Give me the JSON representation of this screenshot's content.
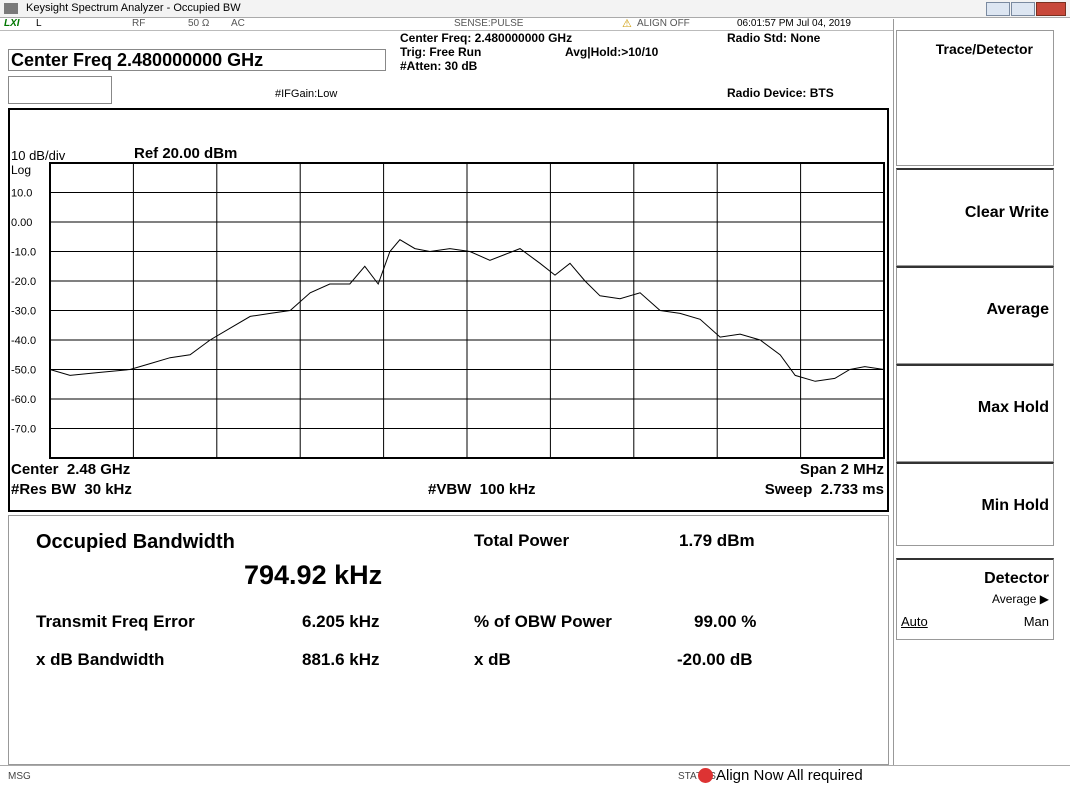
{
  "window": {
    "title": "Keysight Spectrum Analyzer - Occupied BW"
  },
  "status_strip": {
    "lxi": "LXI",
    "l": "L",
    "rf": "RF",
    "impedance": "50 Ω",
    "coupling": "AC",
    "sense": "SENSE:PULSE",
    "align": "ALIGN OFF",
    "time": "06:01:57 PM Jul 04, 2019"
  },
  "header": {
    "center_freq": "Center Freq 2.480000000 GHz",
    "ifgain": "#IFGain:Low",
    "center_freq_info": "Center Freq: 2.480000000 GHz",
    "trig": "Trig: Free Run",
    "avg_hold": "Avg|Hold:>10/10",
    "atten": "#Atten: 30 dB",
    "radio_std": "Radio Std: None",
    "radio_device": "Radio Device: BTS"
  },
  "trace": {
    "type": "line",
    "scale": "10 dB/div",
    "ref": "Ref 20.00 dBm",
    "log": "Log",
    "center": "Center  2.48 GHz",
    "res_bw": "#Res BW  30 kHz",
    "vbw": "#VBW  100 kHz",
    "span": "Span 2 MHz",
    "sweep": "Sweep  2.733 ms",
    "color": "#000000",
    "xlim": [
      2.479,
      2.481
    ],
    "ylim": [
      -80,
      20
    ],
    "xticks": [
      2.479,
      2.4792,
      2.4794,
      2.4796,
      2.4798,
      2.48,
      2.4802,
      2.4804,
      2.4806,
      2.4808,
      2.481
    ],
    "yticks": [
      {
        "value": 10,
        "label": "10.0"
      },
      {
        "value": 0,
        "label": "0.00"
      },
      {
        "value": -10,
        "label": "-10.0"
      },
      {
        "value": -20,
        "label": "-20.0"
      },
      {
        "value": -30,
        "label": "-30.0"
      },
      {
        "value": -40,
        "label": "-40.0"
      },
      {
        "value": -50,
        "label": "-50.0"
      },
      {
        "value": -60,
        "label": "-60.0"
      },
      {
        "value": -70,
        "label": "-70.0"
      }
    ],
    "x": [
      2.479,
      2.479048,
      2.47912,
      2.479192,
      2.47924,
      2.479288,
      2.479336,
      2.479384,
      2.479432,
      2.47948,
      2.479528,
      2.479576,
      2.479624,
      2.479671,
      2.479719,
      2.479755,
      2.479787,
      2.479815,
      2.479839,
      2.479875,
      2.479911,
      2.479959,
      2.480007,
      2.480055,
      2.480091,
      2.480127,
      2.480175,
      2.480211,
      2.480247,
      2.480283,
      2.480319,
      2.480367,
      2.480415,
      2.480463,
      2.480511,
      2.480559,
      2.480607,
      2.480655,
      2.480703,
      2.480751,
      2.480787,
      2.480835,
      2.480882,
      2.480918,
      2.480954,
      2.481
    ],
    "values": [
      -50,
      -52,
      -51,
      -50,
      -48,
      -46,
      -45,
      -40,
      -36,
      -32,
      -31,
      -30,
      -24,
      -21,
      -21,
      -15,
      -21,
      -10,
      -6,
      -9,
      -10,
      -9,
      -10,
      -13,
      -11,
      -9,
      -14,
      -18,
      -14,
      -20,
      -25,
      -26,
      -24,
      -30,
      -31,
      -33,
      -39,
      -38,
      -40,
      -45,
      -52,
      -54,
      -53,
      -50,
      -49,
      -50
    ]
  },
  "results": {
    "obw_label": "Occupied Bandwidth",
    "obw_value": "794.92 kHz",
    "total_power_label": "Total Power",
    "total_power_value": "1.79 dBm",
    "freq_error_label": "Transmit Freq Error",
    "freq_error_value": "6.205 kHz",
    "obw_power_label": "% of OBW Power",
    "obw_power_value": "99.00 %",
    "xdb_bw_label": "x dB Bandwidth",
    "xdb_bw_value": "881.6 kHz",
    "xdb_label": "x dB",
    "xdb_value": "-20.00 dB"
  },
  "softkeys": {
    "menu": "Trace/Detector",
    "clear_write": "Clear Write",
    "average": "Average",
    "max_hold": "Max Hold",
    "min_hold": "Min Hold",
    "detector": "Detector",
    "detector_value": "Average ▶",
    "auto": "Auto",
    "man": "Man"
  },
  "footer": {
    "msg": "MSG",
    "status": "STATUS",
    "message": "Align Now All required"
  }
}
